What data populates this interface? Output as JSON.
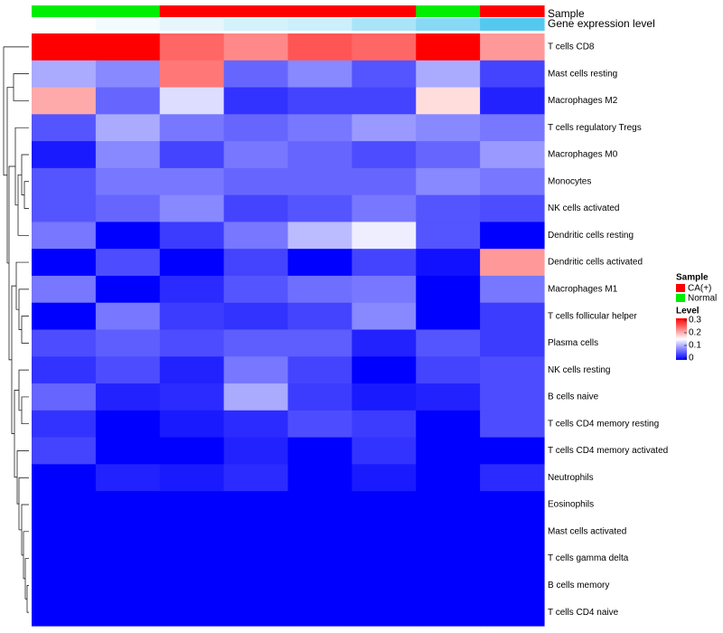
{
  "chart_data": {
    "type": "heatmap",
    "annotation_labels": [
      "Sample",
      "Gene expression level"
    ],
    "sample_annotation": [
      "Normal",
      "Normal",
      "CA(+)",
      "CA(+)",
      "CA(+)",
      "CA(+)",
      "Normal",
      "CA(+)"
    ],
    "gene_expression_annotation": [
      0.0,
      0.03,
      0.06,
      0.1,
      0.12,
      0.2,
      0.28,
      0.4
    ],
    "rows": [
      "T cells CD8",
      "Mast cells resting",
      "Macrophages M2",
      "T cells regulatory  Tregs",
      "Macrophages M0",
      "Monocytes",
      "NK cells activated",
      "Dendritic cells resting",
      "Dendritic cells activated",
      "Macrophages M1",
      "T cells follicular helper",
      "Plasma cells",
      "NK cells resting",
      "B cells naive",
      "T cells CD4 memory resting",
      "T cells CD4 memory activated",
      "Neutrophils",
      "Eosinophils",
      "Mast cells activated",
      "T cells gamma delta",
      "B cells memory",
      "T cells CD4 naive"
    ],
    "values": [
      [
        0.3,
        0.3,
        0.24,
        0.22,
        0.25,
        0.24,
        0.3,
        0.21
      ],
      [
        0.1,
        0.08,
        0.23,
        0.06,
        0.08,
        0.05,
        0.1,
        0.04
      ],
      [
        0.2,
        0.06,
        0.13,
        0.03,
        0.04,
        0.04,
        0.17,
        0.02
      ],
      [
        0.05,
        0.1,
        0.07,
        0.06,
        0.07,
        0.09,
        0.08,
        0.07
      ],
      [
        0.015,
        0.08,
        0.04,
        0.07,
        0.06,
        0.045,
        0.06,
        0.09
      ],
      [
        0.05,
        0.07,
        0.07,
        0.06,
        0.06,
        0.06,
        0.08,
        0.07
      ],
      [
        0.05,
        0.06,
        0.08,
        0.04,
        0.05,
        0.07,
        0.05,
        0.045
      ],
      [
        0.07,
        0.0,
        0.035,
        0.07,
        0.11,
        0.14,
        0.05,
        0.0
      ],
      [
        0.0,
        0.045,
        0.0,
        0.04,
        0.0,
        0.04,
        0.01,
        0.21
      ],
      [
        0.07,
        0.0,
        0.025,
        0.05,
        0.065,
        0.07,
        0.0,
        0.07
      ],
      [
        0.0,
        0.07,
        0.035,
        0.03,
        0.04,
        0.08,
        0.0,
        0.035
      ],
      [
        0.045,
        0.055,
        0.045,
        0.055,
        0.055,
        0.02,
        0.05,
        0.035
      ],
      [
        0.03,
        0.045,
        0.02,
        0.07,
        0.04,
        0.0,
        0.04,
        0.045
      ],
      [
        0.06,
        0.02,
        0.025,
        0.1,
        0.035,
        0.015,
        0.02,
        0.045
      ],
      [
        0.03,
        0.0,
        0.015,
        0.025,
        0.045,
        0.035,
        0.0,
        0.045
      ],
      [
        0.04,
        0.0,
        0.0,
        0.02,
        0.0,
        0.03,
        0.0,
        0.0
      ],
      [
        0.0,
        0.02,
        0.015,
        0.025,
        0.0,
        0.015,
        0.0,
        0.025
      ],
      [
        0.0,
        0.0,
        0.0,
        0.0,
        0.0,
        0.0,
        0.0,
        0.0
      ],
      [
        0.0,
        0.0,
        0.0,
        0.0,
        0.0,
        0.0,
        0.0,
        0.0
      ],
      [
        0.0,
        0.0,
        0.0,
        0.0,
        0.0,
        0.0,
        0.0,
        0.0
      ],
      [
        0.0,
        0.0,
        0.0,
        0.0,
        0.0,
        0.0,
        0.0,
        0.0
      ],
      [
        0.0,
        0.0,
        0.0,
        0.0,
        0.0,
        0.0,
        0.0,
        0.0
      ]
    ],
    "color_scale": {
      "min": 0,
      "max": 0.3,
      "low_color": "#0000ff",
      "mid_color": "#ffffff",
      "high_color": "#ff0000"
    },
    "legend": {
      "position": "right",
      "sample_title": "Sample",
      "sample_entries": [
        {
          "label": "CA(+)",
          "color": "#ff0000"
        },
        {
          "label": "Normal",
          "color": "#00ee00"
        }
      ],
      "level_title": "Level",
      "level_ticks": [
        "0.3",
        "0.2",
        "0.1",
        "0"
      ]
    },
    "row_dendrogram": true,
    "column_dendrogram": false
  }
}
